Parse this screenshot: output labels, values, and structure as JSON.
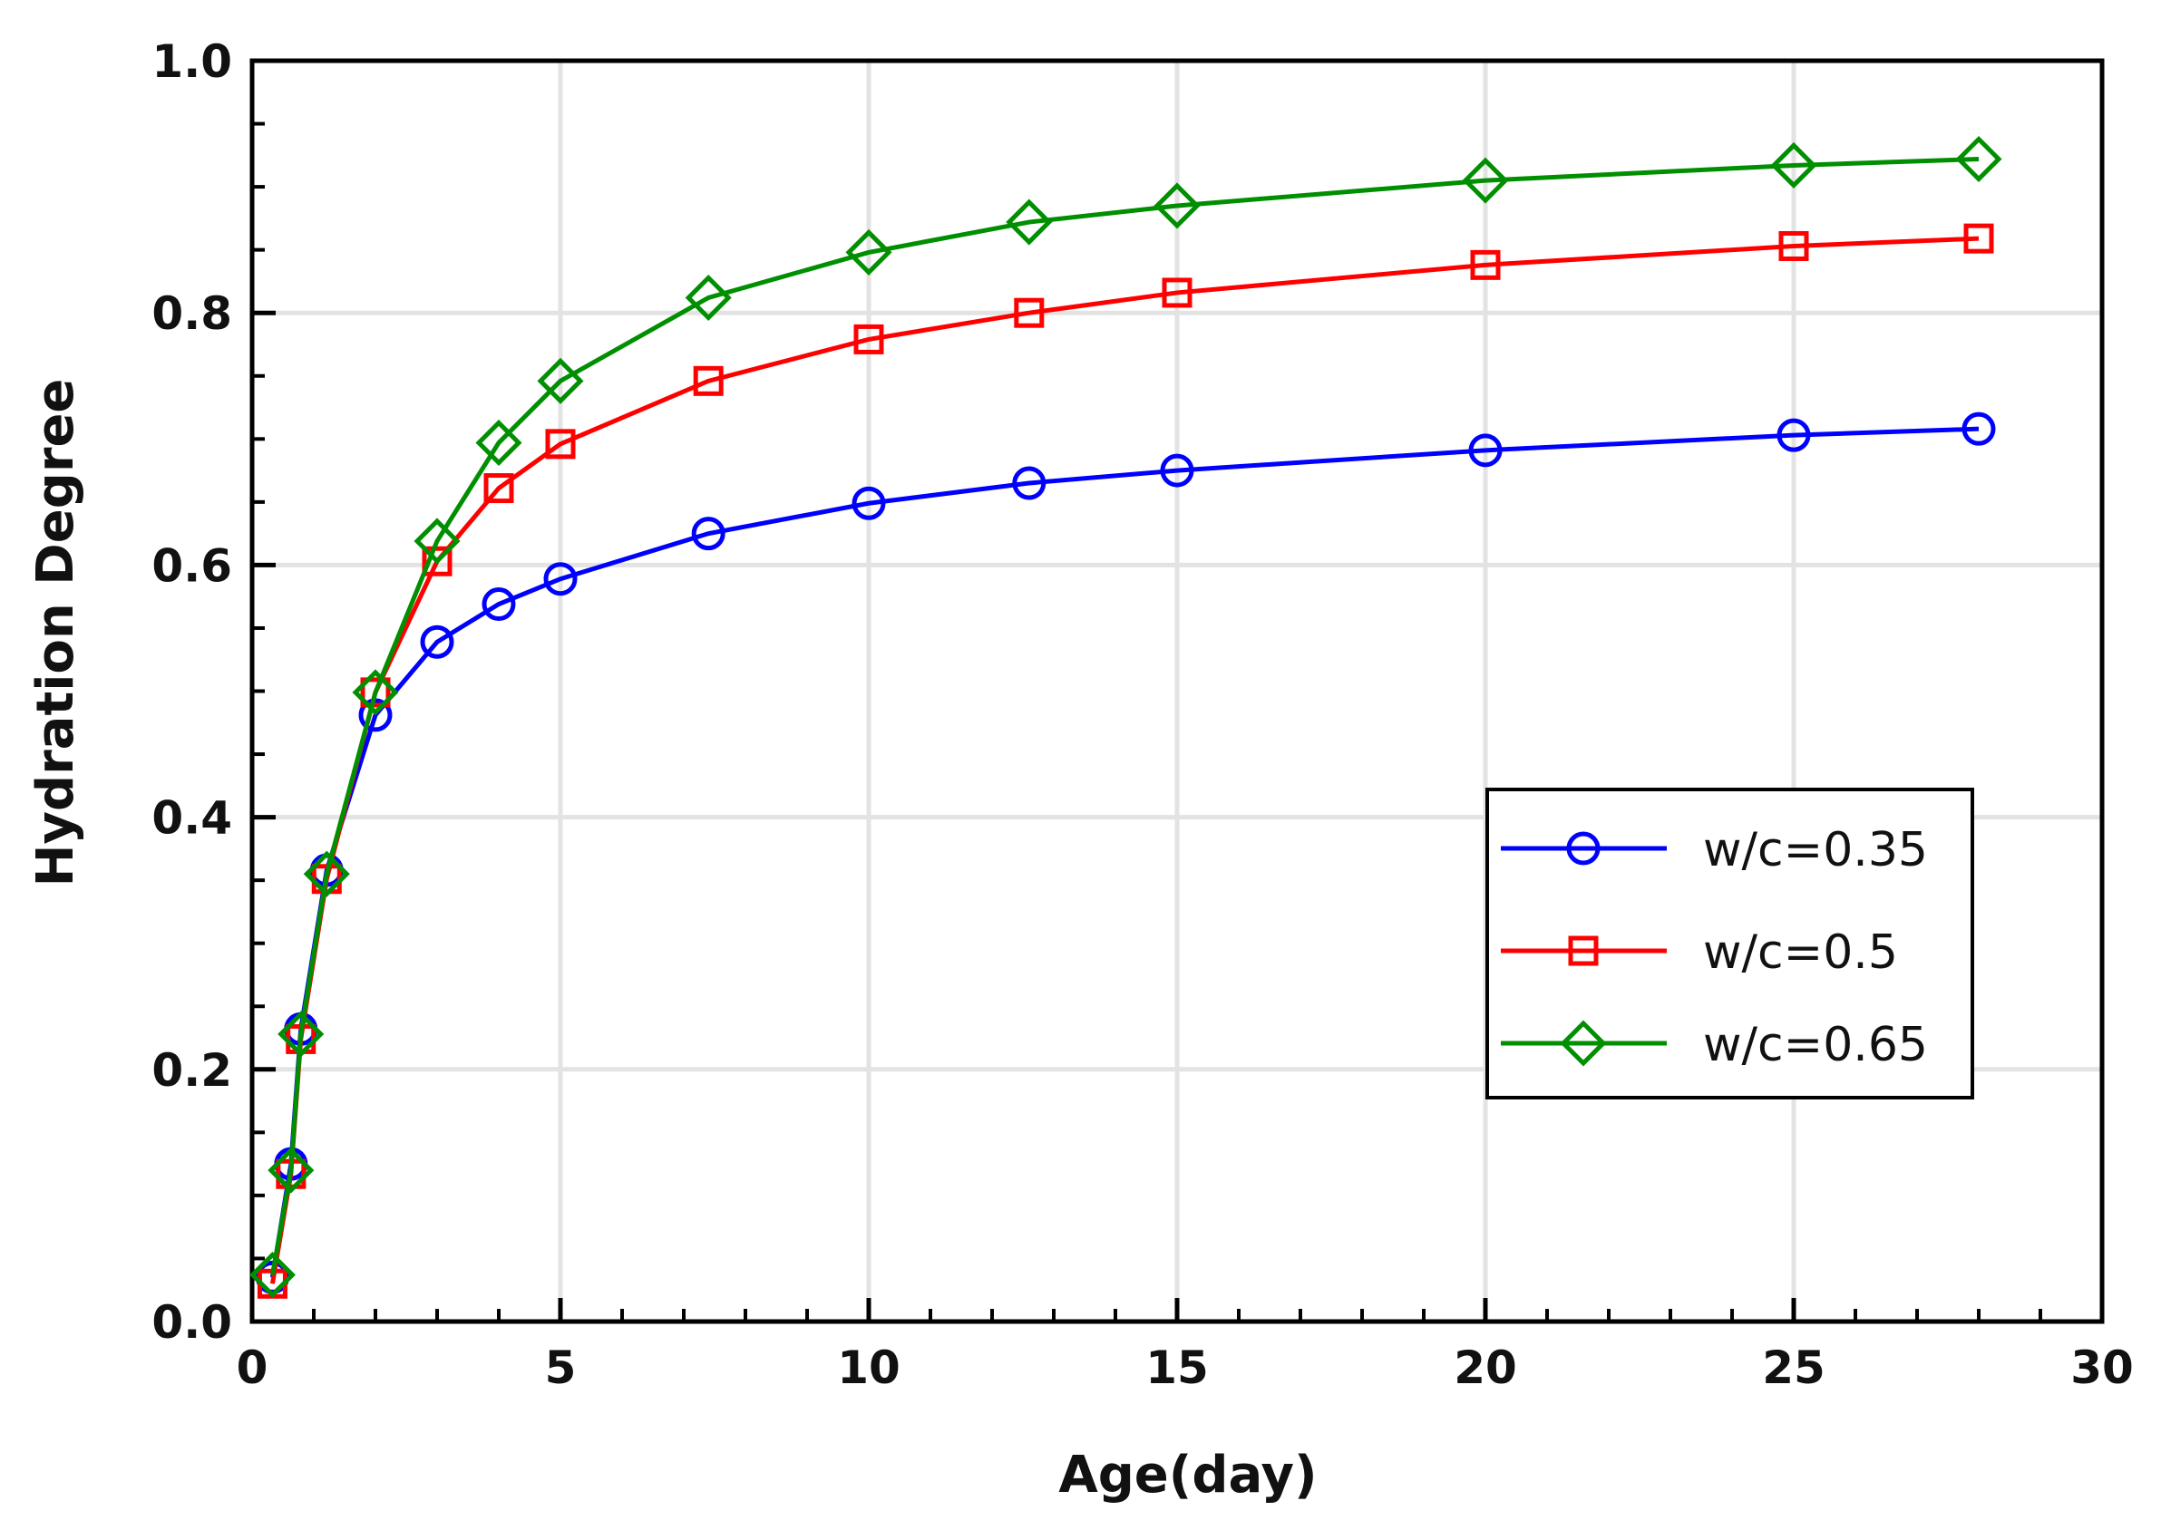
{
  "chart_data": {
    "type": "line",
    "title": "",
    "xlabel": "Age(day)",
    "ylabel": "Hydration Degree",
    "xlim": [
      0,
      30
    ],
    "ylim": [
      0,
      1.0
    ],
    "xticks": [
      0,
      5,
      10,
      15,
      20,
      25,
      30
    ],
    "yticks": [
      0.0,
      0.2,
      0.4,
      0.6,
      0.8,
      1.0
    ],
    "xtick_labels": [
      "0",
      "5",
      "10",
      "15",
      "20",
      "25",
      "30"
    ],
    "ytick_labels": [
      "0.0",
      "0.2",
      "0.4",
      "0.6",
      "0.8",
      "1.0"
    ],
    "grid": true,
    "legend_position": "center-right",
    "series": [
      {
        "name": "w/c=0.35",
        "color": "#0000ff",
        "marker": "circle",
        "x": [
          0.33,
          0.63,
          0.79,
          1.21,
          2.0,
          3.0,
          4.0,
          5.0,
          7.4,
          10.0,
          12.6,
          15.0,
          20.0,
          25.0,
          28.0
        ],
        "y": [
          0.035,
          0.125,
          0.232,
          0.358,
          0.481,
          0.539,
          0.569,
          0.589,
          0.625,
          0.649,
          0.665,
          0.675,
          0.691,
          0.703,
          0.708
        ]
      },
      {
        "name": "w/c=0.5",
        "color": "#ff0000",
        "marker": "square",
        "x": [
          0.33,
          0.63,
          0.79,
          1.21,
          2.0,
          3.0,
          4.0,
          5.0,
          7.4,
          10.0,
          12.6,
          15.0,
          20.0,
          25.0,
          28.0
        ],
        "y": [
          0.03,
          0.117,
          0.224,
          0.351,
          0.499,
          0.603,
          0.661,
          0.696,
          0.746,
          0.779,
          0.8,
          0.816,
          0.838,
          0.853,
          0.859
        ]
      },
      {
        "name": "w/c=0.65",
        "color": "#008f00",
        "marker": "diamond",
        "x": [
          0.33,
          0.63,
          0.79,
          1.21,
          2.0,
          3.0,
          4.0,
          5.0,
          7.4,
          10.0,
          12.6,
          15.0,
          20.0,
          25.0,
          28.0
        ],
        "y": [
          0.037,
          0.12,
          0.228,
          0.355,
          0.499,
          0.619,
          0.697,
          0.746,
          0.812,
          0.848,
          0.872,
          0.885,
          0.905,
          0.917,
          0.922
        ]
      }
    ]
  }
}
